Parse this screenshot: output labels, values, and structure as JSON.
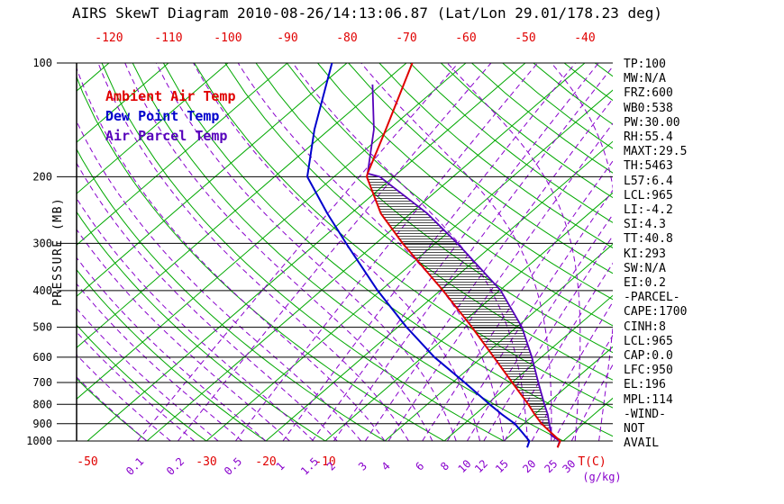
{
  "title": "AIRS SkewT Diagram 2010-08-26/14:13:06.87 (Lat/Lon 29.01/178.23 deg)",
  "colors": {
    "isotherm_green": "#00a800",
    "moist_purple": "#8800cc",
    "ambient_red": "#e00000",
    "dew_blue": "#0000cc",
    "parcel_purple": "#5500bb",
    "grid_black": "#000000"
  },
  "legend": {
    "items": [
      {
        "label": "Ambient Air Temp",
        "color": "#e00000"
      },
      {
        "label": "Dew Point Temp",
        "color": "#0000cc"
      },
      {
        "label": "Air Parcel Temp",
        "color": "#5500bb"
      }
    ]
  },
  "axes": {
    "pressure_label": "PRESSURE (MB)",
    "pressure_ticks_mb": [
      100,
      200,
      300,
      400,
      500,
      600,
      700,
      800,
      900,
      1000
    ],
    "top_temp_ticks_c": [
      -120,
      -110,
      -100,
      -90,
      -80,
      -70,
      -60,
      -50,
      -40
    ],
    "bottom_temp_ticks_c": [
      -50,
      -30,
      -20,
      -10
    ],
    "bottom_temp_unit": "T(C)",
    "mixing_ratio_ticks_gkg": [
      0.1,
      0.2,
      0.5,
      1,
      1.5,
      2,
      3,
      4,
      6,
      8,
      10,
      12,
      15,
      20,
      25,
      30
    ],
    "mixing_ratio_unit": "(g/kg)"
  },
  "stats_panel": [
    "TP:100",
    "MW:N/A",
    "FRZ:600",
    "WB0:538",
    "PW:30.00",
    "RH:55.4",
    "MAXT:29.5",
    "TH:5463",
    "L57:6.4",
    "LCL:965",
    "LI:-4.2",
    "SI:4.3",
    "TT:40.8",
    "KI:293",
    "SW:N/A",
    "EI:0.2",
    "-PARCEL-",
    "CAPE:1700",
    "CINH:8",
    "LCL:965",
    "CAP:0.0",
    "LFC:950",
    "EL:196",
    "MPL:114",
    "-WIND-",
    "NOT",
    "AVAIL"
  ],
  "chart_data": {
    "type": "line",
    "title": "AIRS SkewT Diagram 2010-08-26/14:13:06.87 (Lat/Lon 29.01/178.23 deg)",
    "x_axis": "temperature C (skewed)",
    "y_axis": "pressure MB (log scale)",
    "pressure_range_mb": [
      100,
      1050
    ],
    "grid": {
      "isotherms_c": {
        "min": -130,
        "max": 40,
        "step": 10
      },
      "dry_adiabats_c": {
        "min": -40,
        "max": 180,
        "step": 10
      },
      "moist_adiabats_start_c": {
        "min": -40,
        "max": 36,
        "step": 4
      },
      "mixing_ratio_lines_gkg": [
        0.1,
        0.2,
        0.5,
        1,
        1.5,
        2,
        3,
        4,
        6,
        8,
        10,
        12,
        15,
        20,
        25,
        30
      ]
    },
    "series": [
      {
        "name": "Ambient Air Temp",
        "color": "#e00000",
        "points_mb_c": [
          [
            1040,
            30.3
          ],
          [
            1000,
            29.5
          ],
          [
            950,
            26.3
          ],
          [
            900,
            23.0
          ],
          [
            850,
            20.0
          ],
          [
            800,
            17.0
          ],
          [
            700,
            10.0
          ],
          [
            600,
            2.0
          ],
          [
            500,
            -7.5
          ],
          [
            400,
            -19.5
          ],
          [
            300,
            -35.5
          ],
          [
            250,
            -45.0
          ],
          [
            200,
            -54.5
          ],
          [
            196,
            -55.0
          ],
          [
            150,
            -60.5
          ],
          [
            100,
            -69.0
          ]
        ]
      },
      {
        "name": "Dew Point Temp",
        "color": "#0000cc",
        "points_mb_c": [
          [
            1040,
            25.2
          ],
          [
            1000,
            24.3
          ],
          [
            950,
            21.5
          ],
          [
            900,
            18.5
          ],
          [
            850,
            14.5
          ],
          [
            800,
            10.5
          ],
          [
            700,
            2.0
          ],
          [
            600,
            -8.0
          ],
          [
            500,
            -18.5
          ],
          [
            400,
            -30.5
          ],
          [
            300,
            -45.0
          ],
          [
            250,
            -54.0
          ],
          [
            200,
            -64.5
          ],
          [
            150,
            -72.5
          ],
          [
            100,
            -82.5
          ]
        ]
      },
      {
        "name": "Air Parcel Temp",
        "color": "#5500bb",
        "points_mb_c": [
          [
            1040,
            30.3
          ],
          [
            1000,
            29.4
          ],
          [
            965,
            26.8
          ],
          [
            950,
            26.3
          ],
          [
            900,
            24.3
          ],
          [
            850,
            22.2
          ],
          [
            800,
            19.7
          ],
          [
            700,
            14.4
          ],
          [
            600,
            8.4
          ],
          [
            500,
            0.9
          ],
          [
            400,
            -9.8
          ],
          [
            300,
            -26.3
          ],
          [
            250,
            -37.2
          ],
          [
            200,
            -52.3
          ],
          [
            196,
            -55.0
          ],
          [
            150,
            -62.5
          ],
          [
            114,
            -71.5
          ]
        ]
      }
    ],
    "cape_area": {
      "between": [
        "Air Parcel Temp",
        "Ambient Air Temp"
      ],
      "from_mb": 950,
      "to_mb": 196,
      "style": "horizontal-hatch"
    }
  }
}
